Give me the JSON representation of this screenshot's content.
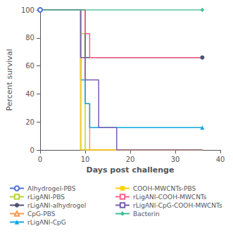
{
  "chart_data": {
    "type": "line",
    "xlabel": "Days post challenge",
    "ylabel": "Percent survival",
    "xlim": [
      0,
      40
    ],
    "ylim": [
      0,
      100
    ],
    "xticks": [
      0,
      10,
      20,
      30,
      40
    ],
    "yticks": [
      0,
      20,
      40,
      60,
      80,
      100
    ],
    "grid": false,
    "series": [
      {
        "name": "Alhydrogel-PBS",
        "marker": "open circle",
        "x": [
          0,
          9,
          9,
          10,
          10,
          36
        ],
        "values": [
          100,
          100,
          0,
          0,
          0,
          0
        ],
        "marker_points": [
          [
            0,
            100
          ]
        ]
      },
      {
        "name": "rLigANI-PBS",
        "marker": "open square",
        "x": [
          0,
          9,
          9,
          10,
          10,
          36
        ],
        "values": [
          100,
          100,
          83,
          83,
          0,
          0
        ],
        "marker_points": []
      },
      {
        "name": "rLigANI-alhydrogel",
        "marker": "circle",
        "x": [
          0,
          10,
          10,
          36
        ],
        "values": [
          100,
          100,
          66,
          66
        ],
        "marker_points": [
          [
            36,
            66
          ]
        ]
      },
      {
        "name": "CpG-PBS",
        "marker": "open triangle",
        "x": [
          0,
          9,
          9,
          10,
          10,
          11,
          11,
          36
        ],
        "values": [
          100,
          100,
          66,
          66,
          33,
          33,
          0,
          0
        ],
        "marker_points": []
      },
      {
        "name": "rLigANI-CpG",
        "marker": "triangle",
        "x": [
          0,
          9,
          9,
          10,
          10,
          11,
          11,
          36
        ],
        "values": [
          100,
          100,
          50,
          50,
          33,
          33,
          16,
          16
        ],
        "marker_points": [
          [
            36,
            16
          ]
        ]
      },
      {
        "name": "COOH-MWCNTs-PBS",
        "marker": "square",
        "x": [
          0,
          9,
          9,
          36
        ],
        "values": [
          100,
          100,
          0,
          0
        ],
        "marker_points": []
      },
      {
        "name": "rLigANI-COOH-MWCNTs",
        "marker": "open square",
        "x": [
          0,
          10,
          10,
          11,
          11,
          36
        ],
        "values": [
          100,
          100,
          83,
          83,
          66,
          66
        ],
        "marker_points": []
      },
      {
        "name": "rLigANI-CpG-COOH-MWCNTs",
        "marker": "open square",
        "x": [
          0,
          9,
          9,
          10,
          10,
          13,
          13,
          17,
          17,
          36
        ],
        "values": [
          100,
          100,
          66,
          66,
          50,
          50,
          16,
          16,
          0,
          0
        ],
        "marker_points": []
      },
      {
        "name": "Bacterin",
        "marker": "diamond",
        "x": [
          0,
          36
        ],
        "values": [
          100,
          100
        ],
        "marker_points": [
          [
            36,
            100
          ]
        ]
      }
    ]
  }
}
